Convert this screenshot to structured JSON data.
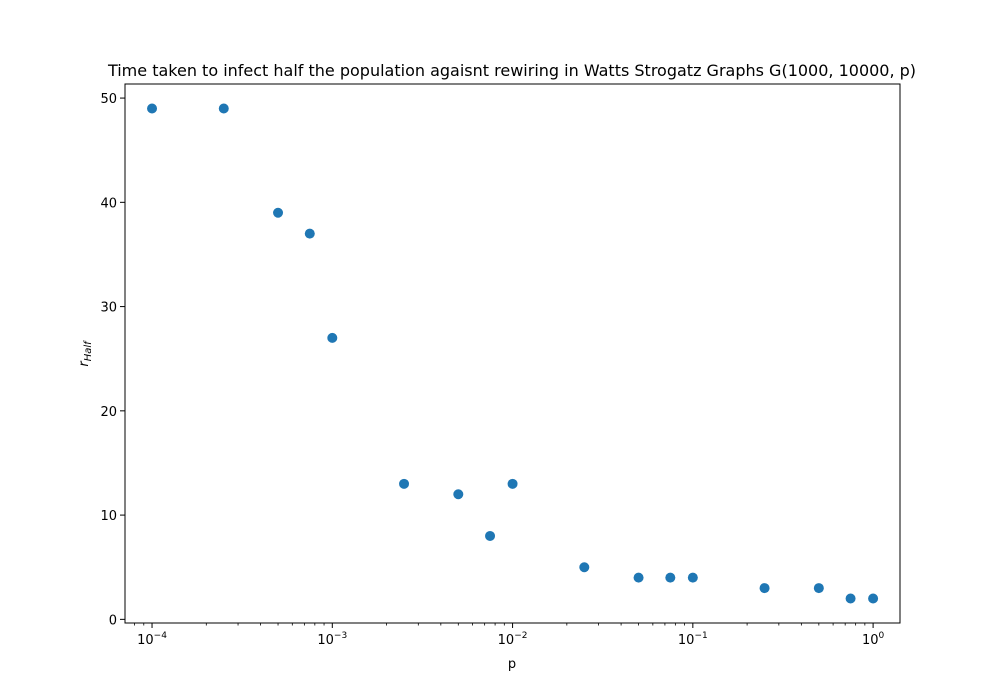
{
  "chart_data": {
    "type": "scatter",
    "title": "Time taken to infect half the population agaisnt rewiring in Watts Strogatz Graphs G(1000, 10000, p)",
    "xlabel": "p",
    "ylabel_base": "r",
    "ylabel_sub": "Half",
    "xscale": "log",
    "xlim": [
      7.08e-05,
      1.41
    ],
    "ylim": [
      -0.35,
      51.35
    ],
    "x_ticks": [
      {
        "value": 0.0001,
        "base": "10",
        "exp": "−4"
      },
      {
        "value": 0.001,
        "base": "10",
        "exp": "−3"
      },
      {
        "value": 0.01,
        "base": "10",
        "exp": "−2"
      },
      {
        "value": 0.1,
        "base": "10",
        "exp": "−1"
      },
      {
        "value": 1,
        "base": "10",
        "exp": "0"
      }
    ],
    "y_ticks": [
      0,
      10,
      20,
      30,
      40,
      50
    ],
    "grid": false,
    "marker_color": "#1f77b4",
    "series": [
      {
        "x": [
          0.0001,
          0.00025,
          0.0005,
          0.00075,
          0.001,
          0.0025,
          0.005,
          0.0075,
          0.01,
          0.025,
          0.05,
          0.075,
          0.1,
          0.25,
          0.5,
          0.75,
          1.0
        ],
        "y": [
          49,
          49,
          39,
          37,
          27,
          13,
          12,
          8,
          13,
          5,
          4,
          4,
          4,
          3,
          3,
          2,
          2
        ]
      }
    ]
  }
}
